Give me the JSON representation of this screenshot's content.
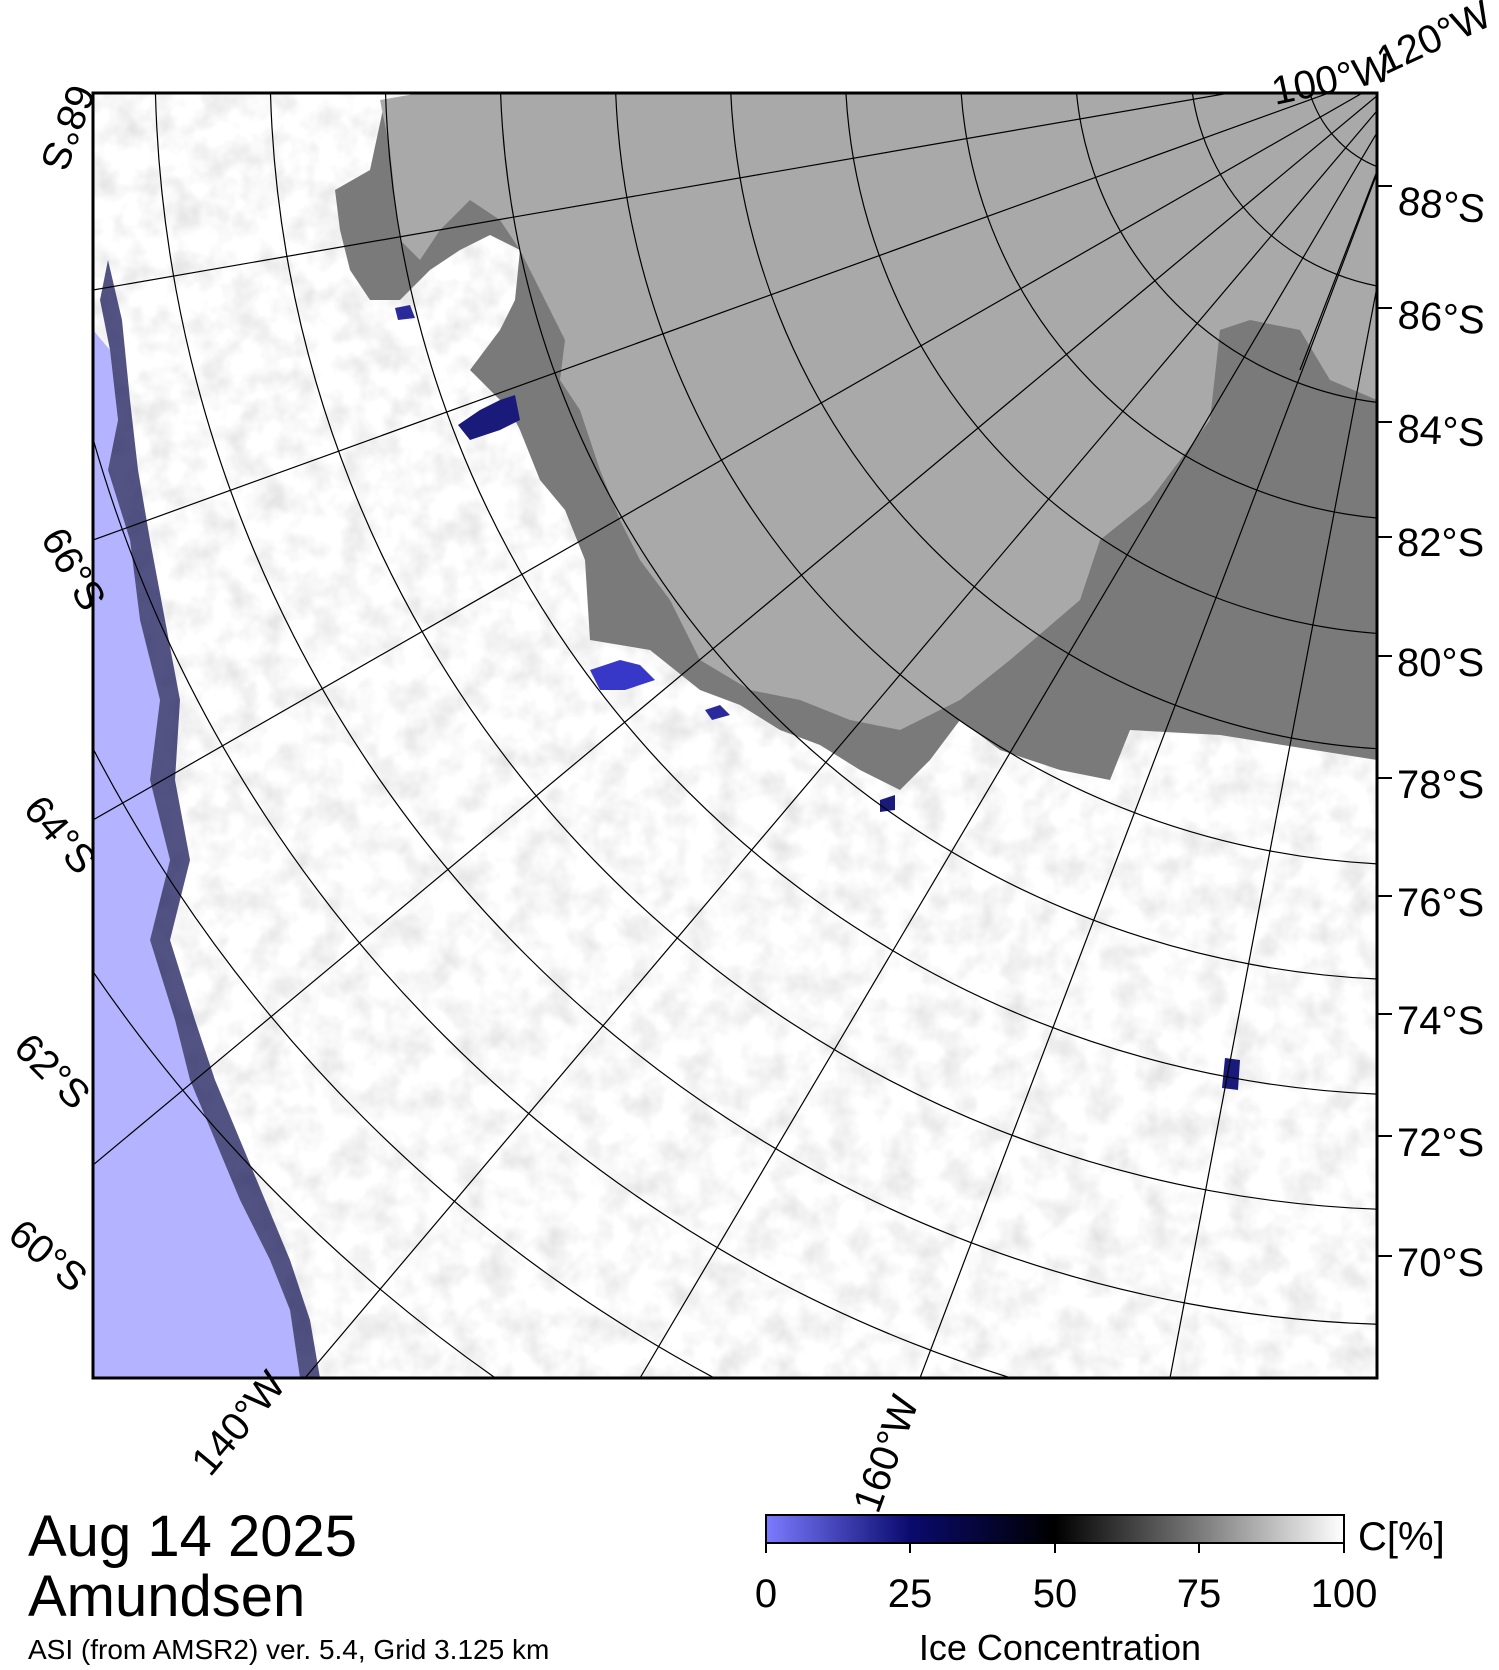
{
  "map": {
    "region": "Amundsen",
    "date": "Aug 14 2025",
    "source_note": "ASI (from AMSR2) ver. 5.4,  Grid 3.125 km",
    "lat_labels_right": [
      "88°S",
      "86°S",
      "84°S",
      "82°S",
      "80°S",
      "78°S",
      "76°S",
      "74°S",
      "72°S",
      "70°S"
    ],
    "lat_labels_left": [
      "68°S",
      "66°S",
      "64°S",
      "62°S",
      "60°S"
    ],
    "lon_labels": [
      "100°W",
      "120°W",
      "140°W",
      "160°W"
    ],
    "colors": {
      "ocean_open": "#b3b3ff",
      "land_ice": "#a9a9a9",
      "ice_shelf": "#7a7a7a",
      "sea_ice": "#ffffff",
      "grid": "#000000"
    }
  },
  "legend": {
    "unit": "C[%]",
    "title": "Ice Concentration",
    "ticks": [
      "0",
      "25",
      "50",
      "75",
      "100"
    ],
    "colorbar": [
      "#7b7bff",
      "#0a0a6e",
      "#000000",
      "#7a7a7a",
      "#ffffff"
    ]
  }
}
